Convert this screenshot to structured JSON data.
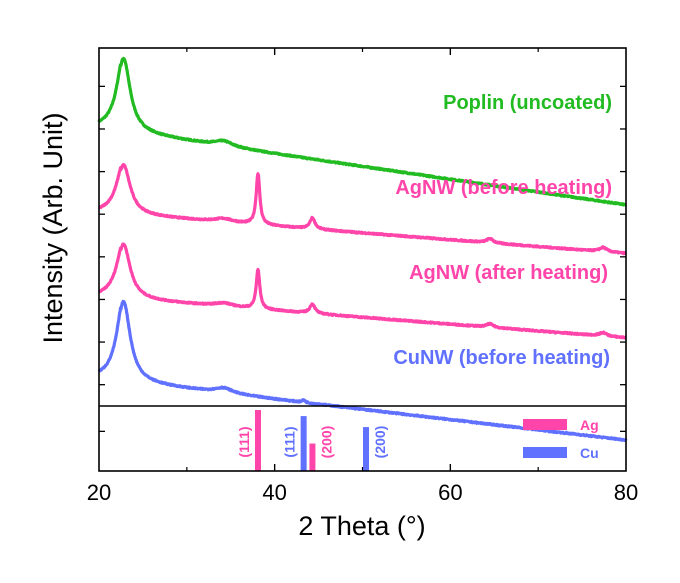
{
  "chart_data": {
    "type": "line",
    "title": "",
    "xlabel": "2 Theta (°)",
    "ylabel": "Intensity (Arb. Unit)",
    "xlim": [
      20,
      80
    ],
    "xticks_major": [
      20,
      40,
      60,
      80
    ],
    "xticks_minor": [
      30,
      50,
      70
    ],
    "xtick_labels": [
      "20",
      "40",
      "60",
      "80"
    ],
    "ylim_top_panel": [
      0,
      4.2
    ],
    "grid": false,
    "series": [
      {
        "name": "Poplin (uncoated)",
        "label": "Poplin (uncoated)",
        "color": "#22bb22",
        "baseline": 3.26,
        "baseline_slope": -0.0015,
        "peaks": [
          {
            "x": 22.8,
            "height": 0.86,
            "width": 0.9
          },
          {
            "x": 34.2,
            "height": 0.06,
            "width": 1.2
          }
        ]
      },
      {
        "name": "AgNW (before heating)",
        "label": "AgNW (before heating)",
        "color": "#ff44aa",
        "baseline": 2.27,
        "baseline_slope": -0.0008,
        "peaks": [
          {
            "x": 22.8,
            "height": 0.58,
            "width": 0.9
          },
          {
            "x": 34.2,
            "height": 0.04,
            "width": 1.2
          },
          {
            "x": 38.1,
            "height": 0.6,
            "width": 0.25
          },
          {
            "x": 44.3,
            "height": 0.13,
            "width": 0.35
          },
          {
            "x": 64.5,
            "height": 0.05,
            "width": 0.45
          },
          {
            "x": 77.4,
            "height": 0.05,
            "width": 0.5
          }
        ]
      },
      {
        "name": "AgNW (after heating)",
        "label": "AgNW (after heating)",
        "color": "#ff44aa",
        "baseline": 1.28,
        "baseline_slope": -0.0008,
        "peaks": [
          {
            "x": 22.8,
            "height": 0.64,
            "width": 0.9
          },
          {
            "x": 34.2,
            "height": 0.04,
            "width": 1.2
          },
          {
            "x": 38.1,
            "height": 0.46,
            "width": 0.25
          },
          {
            "x": 44.3,
            "height": 0.11,
            "width": 0.35
          },
          {
            "x": 64.5,
            "height": 0.04,
            "width": 0.45
          },
          {
            "x": 77.4,
            "height": 0.04,
            "width": 0.5
          }
        ]
      },
      {
        "name": "CuNW (before heating)",
        "label": "CuNW (before heating)",
        "color": "#6070ff",
        "baseline": 0.32,
        "baseline_slope": -0.0012,
        "peaks": [
          {
            "x": 22.8,
            "height": 0.94,
            "width": 0.9
          },
          {
            "x": 34.2,
            "height": 0.06,
            "width": 1.2
          },
          {
            "x": 43.3,
            "height": 0.03,
            "width": 0.2
          }
        ]
      }
    ],
    "reference_panel": {
      "ylim": [
        0,
        1
      ],
      "bars": [
        {
          "element": "Ag",
          "hkl": "(111)",
          "x": 38.1,
          "intensity": 1.0,
          "color": "#ff44aa"
        },
        {
          "element": "Cu",
          "hkl": "(111)",
          "x": 43.3,
          "intensity": 0.9,
          "color": "#6070ff"
        },
        {
          "element": "Ag",
          "hkl": "(200)",
          "x": 44.3,
          "intensity": 0.45,
          "color": "#ff44aa"
        },
        {
          "element": "Cu",
          "hkl": "(200)",
          "x": 50.4,
          "intensity": 0.72,
          "color": "#6070ff"
        }
      ],
      "legend": {
        "placement": "top-right",
        "entries": [
          {
            "label": "Ag",
            "color": "#ff44aa"
          },
          {
            "label": "Cu",
            "color": "#6070ff"
          }
        ]
      }
    }
  }
}
